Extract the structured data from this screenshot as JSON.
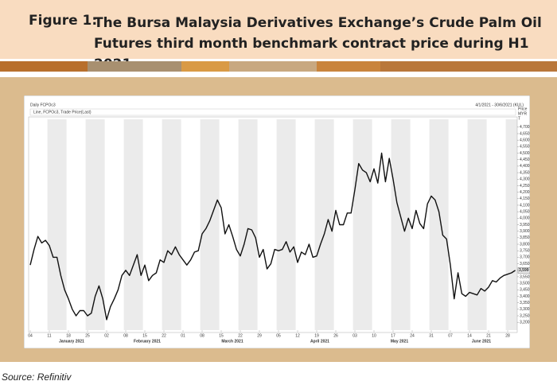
{
  "figure_label": "Figure 1:",
  "title": "The Bursa Malaysia Derivatives Exchange’s Crude Palm Oil Futures third month benchmark contract price during H1 2021",
  "source": "Source: Refinitiv",
  "chart_data": {
    "type": "line",
    "chart_title": "Daily FCPOc3",
    "date_range": "4/1/2021 - 30/6/2021 (KUL)",
    "y_axis_label": [
      "Price",
      "MYR",
      "T"
    ],
    "categories": [
      "04",
      null,
      null,
      null,
      null,
      "11",
      null,
      null,
      null,
      null,
      "18",
      null,
      null,
      null,
      null,
      "25",
      null,
      null,
      null,
      null,
      "02",
      null,
      null,
      null,
      null,
      "08",
      null,
      null,
      null,
      null,
      "15",
      null,
      null,
      null,
      null,
      "22",
      null,
      null,
      null,
      null,
      "01",
      null,
      null,
      null,
      null,
      "08",
      null,
      null,
      null,
      null,
      "15",
      null,
      null,
      null,
      null,
      "22",
      null,
      null,
      null,
      null,
      "29",
      null,
      null,
      null,
      null,
      "05",
      null,
      null,
      null,
      null,
      "12",
      null,
      null,
      null,
      null,
      "19",
      null,
      null,
      null,
      null,
      "26",
      null,
      null,
      null,
      null,
      "03",
      null,
      null,
      null,
      null,
      "10",
      null,
      null,
      null,
      null,
      "17",
      null,
      null,
      null,
      null,
      "24",
      null,
      null,
      null,
      null,
      "31",
      null,
      null,
      null,
      null,
      "07",
      null,
      null,
      null,
      null,
      "14",
      null,
      null,
      null,
      null,
      "21",
      null,
      null,
      null,
      null,
      "28",
      null,
      null
    ],
    "months": [
      "January 2021",
      "February 2021",
      "March 2021",
      "April 2021",
      "May 2021",
      "June 2021"
    ],
    "series": [
      {
        "name": "Line, FCPOc3, Trade Price(Last)",
        "color": "#111111",
        "values": [
          3640,
          3760,
          3860,
          3810,
          3830,
          3790,
          3700,
          3700,
          3560,
          3450,
          3380,
          3300,
          3250,
          3290,
          3290,
          3250,
          3270,
          3400,
          3480,
          3380,
          3220,
          3320,
          3380,
          3450,
          3560,
          3600,
          3560,
          3640,
          3720,
          3560,
          3640,
          3520,
          3560,
          3580,
          3680,
          3660,
          3750,
          3720,
          3780,
          3720,
          3680,
          3640,
          3680,
          3740,
          3750,
          3880,
          3920,
          3980,
          4060,
          4140,
          4080,
          3880,
          3950,
          3860,
          3760,
          3710,
          3800,
          3920,
          3910,
          3850,
          3700,
          3760,
          3610,
          3650,
          3760,
          3750,
          3760,
          3820,
          3740,
          3780,
          3660,
          3740,
          3720,
          3800,
          3700,
          3710,
          3800,
          3880,
          3990,
          3900,
          4060,
          3950,
          3950,
          4040,
          4040,
          4220,
          4420,
          4370,
          4350,
          4280,
          4380,
          4270,
          4500,
          4280,
          4460,
          4300,
          4120,
          4010,
          3900,
          4000,
          3920,
          4060,
          3960,
          3920,
          4110,
          4170,
          4140,
          4050,
          3870,
          3840,
          3640,
          3380,
          3580,
          3420,
          3400,
          3430,
          3420,
          3410,
          3460,
          3440,
          3470,
          3520,
          3510,
          3540,
          3560,
          3570,
          3580,
          3599
        ],
        "last_value_label": "3,599"
      }
    ],
    "ylim": [
      3140,
      4760
    ],
    "yticks": [
      {
        "value": 3200,
        "label": "3,200"
      },
      {
        "value": 3250,
        "label": "3,250"
      },
      {
        "value": 3300,
        "label": "3,300"
      },
      {
        "value": 3350,
        "label": "3,350"
      },
      {
        "value": 3400,
        "label": "3,400"
      },
      {
        "value": 3450,
        "label": "3,450"
      },
      {
        "value": 3500,
        "label": "3,500"
      },
      {
        "value": 3550,
        "label": "3,550"
      },
      {
        "value": 3600,
        "label": "3,600"
      },
      {
        "value": 3650,
        "label": "3,650"
      },
      {
        "value": 3700,
        "label": "3,700"
      },
      {
        "value": 3750,
        "label": "3,750"
      },
      {
        "value": 3800,
        "label": "3,800"
      },
      {
        "value": 3850,
        "label": "3,850"
      },
      {
        "value": 3900,
        "label": "3,900"
      },
      {
        "value": 3950,
        "label": "3,950"
      },
      {
        "value": 4000,
        "label": "4,000"
      },
      {
        "value": 4050,
        "label": "4,050"
      },
      {
        "value": 4100,
        "label": "4,100"
      },
      {
        "value": 4150,
        "label": "4,150"
      },
      {
        "value": 4200,
        "label": "4,200"
      },
      {
        "value": 4250,
        "label": "4,250"
      },
      {
        "value": 4300,
        "label": "4,300"
      },
      {
        "value": 4350,
        "label": "4,350"
      },
      {
        "value": 4400,
        "label": "4,400"
      },
      {
        "value": 4450,
        "label": "4,450"
      },
      {
        "value": 4500,
        "label": "4,500"
      },
      {
        "value": 4550,
        "label": "4,550"
      },
      {
        "value": 4600,
        "label": "4,600"
      },
      {
        "value": 4650,
        "label": "4,650"
      },
      {
        "value": 4700,
        "label": "4,700"
      }
    ],
    "grid": false
  }
}
